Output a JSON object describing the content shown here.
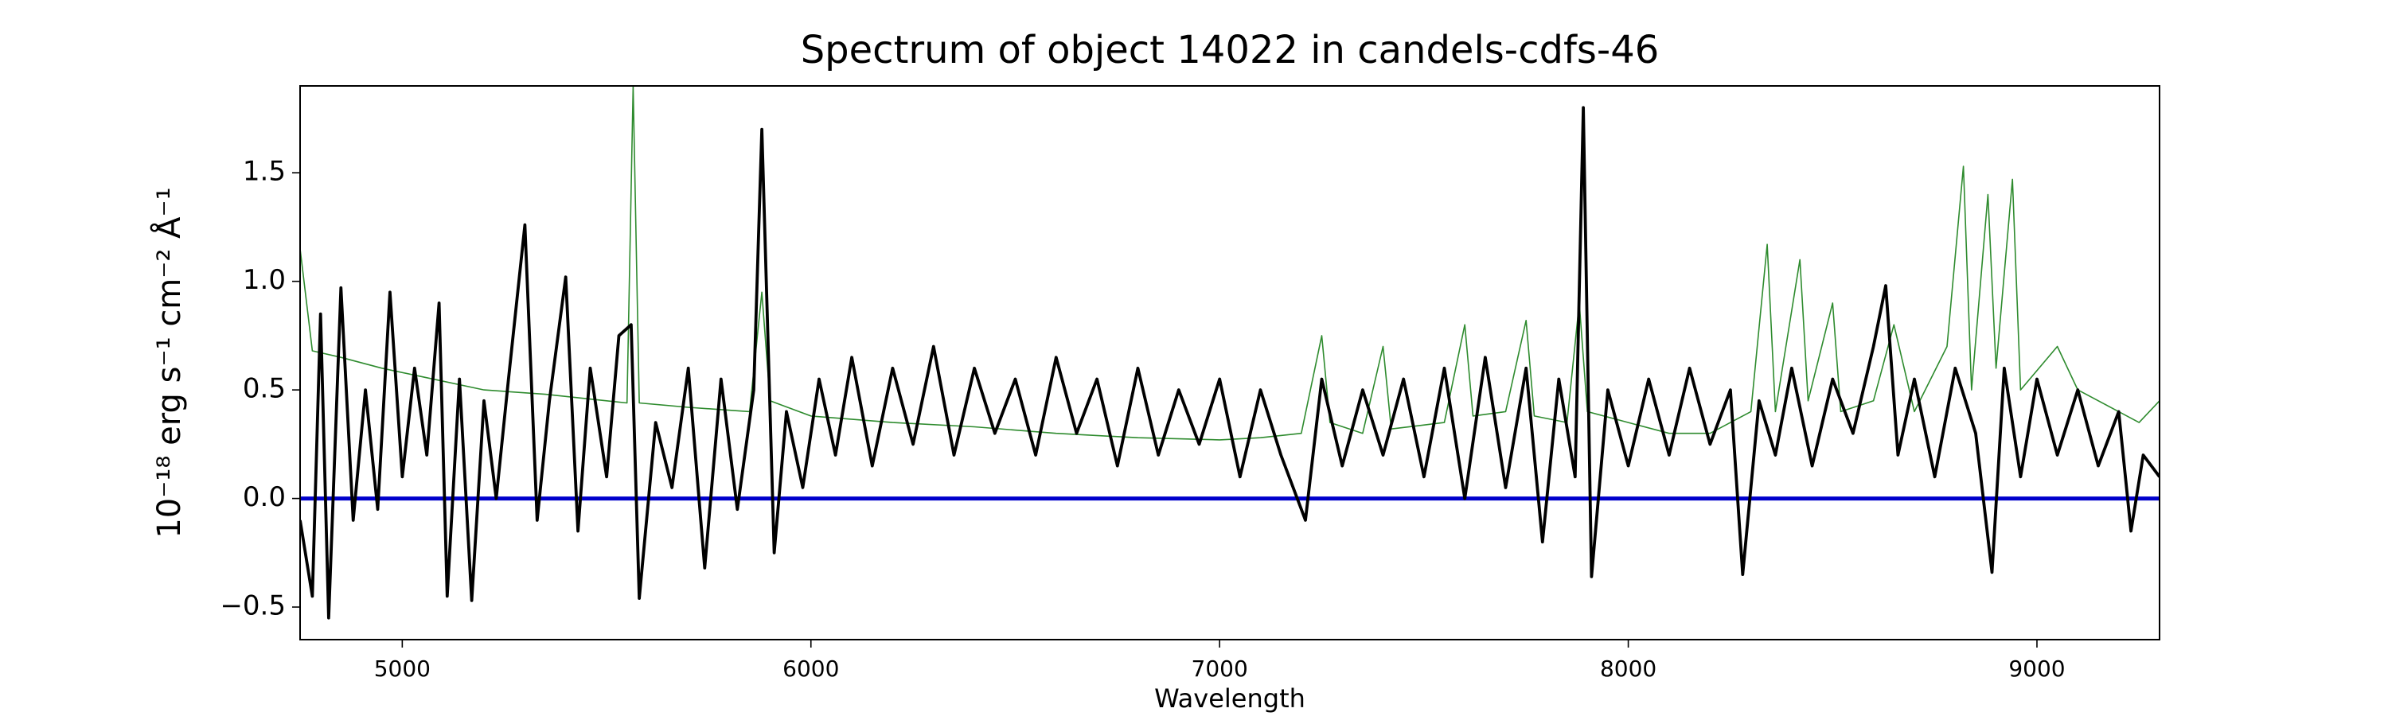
{
  "chart_data": {
    "type": "line",
    "title": "Spectrum of object 14022 in candels-cdfs-46",
    "xlabel": "Wavelength",
    "ylabel": "10⁻¹⁸ erg s⁻¹ cm⁻² Å⁻¹",
    "xlim": [
      4750,
      9300
    ],
    "ylim": [
      -0.65,
      1.9
    ],
    "xticks": [
      5000,
      6000,
      7000,
      8000,
      9000
    ],
    "yticks": [
      {
        "value": -0.5,
        "label": "−0.5"
      },
      {
        "value": 0,
        "label": "0.0"
      },
      0.5,
      {
        "value": 1,
        "label": "1.0"
      },
      1.5
    ],
    "grid": false,
    "series": [
      {
        "color": "#2e8b2e",
        "x": [
          4750,
          4780,
          4850,
          4950,
          5050,
          5200,
          5350,
          5500,
          5550,
          5565,
          5580,
          5700,
          5850,
          5880,
          5900,
          6000,
          6200,
          6400,
          6600,
          6800,
          7000,
          7100,
          7200,
          7250,
          7270,
          7350,
          7400,
          7420,
          7550,
          7600,
          7620,
          7700,
          7750,
          7770,
          7850,
          7880,
          7900,
          8000,
          8100,
          8200,
          8300,
          8340,
          8360,
          8420,
          8440,
          8500,
          8520,
          8600,
          8650,
          8700,
          8780,
          8820,
          8840,
          8880,
          8900,
          8940,
          8960,
          9050,
          9100,
          9200,
          9250,
          9300
        ],
        "values": [
          1.15,
          0.68,
          0.65,
          0.6,
          0.56,
          0.5,
          0.48,
          0.45,
          0.44,
          1.9,
          0.44,
          0.42,
          0.4,
          0.95,
          0.45,
          0.38,
          0.35,
          0.33,
          0.3,
          0.28,
          0.27,
          0.28,
          0.3,
          0.75,
          0.35,
          0.3,
          0.7,
          0.32,
          0.35,
          0.8,
          0.38,
          0.4,
          0.82,
          0.38,
          0.35,
          0.9,
          0.4,
          0.35,
          0.3,
          0.3,
          0.4,
          1.17,
          0.4,
          1.1,
          0.45,
          0.9,
          0.4,
          0.45,
          0.8,
          0.4,
          0.7,
          1.53,
          0.5,
          1.4,
          0.6,
          1.47,
          0.5,
          0.7,
          0.5,
          0.4,
          0.35,
          0.45
        ]
      },
      {
        "color": "#0000cc",
        "x": [
          4750,
          9300
        ],
        "values": [
          0,
          0
        ]
      },
      {
        "color": "#000000",
        "x": [
          4750,
          4780,
          4800,
          4820,
          4850,
          4880,
          4910,
          4940,
          4970,
          5000,
          5030,
          5060,
          5090,
          5110,
          5140,
          5170,
          5200,
          5230,
          5260,
          5300,
          5330,
          5360,
          5400,
          5430,
          5460,
          5500,
          5530,
          5560,
          5580,
          5620,
          5660,
          5700,
          5740,
          5780,
          5820,
          5860,
          5880,
          5910,
          5940,
          5980,
          6020,
          6060,
          6100,
          6150,
          6200,
          6250,
          6300,
          6350,
          6400,
          6450,
          6500,
          6550,
          6600,
          6650,
          6700,
          6750,
          6800,
          6850,
          6900,
          6950,
          7000,
          7050,
          7100,
          7150,
          7210,
          7250,
          7300,
          7350,
          7400,
          7450,
          7500,
          7550,
          7600,
          7650,
          7700,
          7750,
          7790,
          7830,
          7870,
          7890,
          7910,
          7950,
          8000,
          8050,
          8100,
          8150,
          8200,
          8250,
          8280,
          8320,
          8360,
          8400,
          8450,
          8500,
          8550,
          8600,
          8630,
          8660,
          8700,
          8750,
          8800,
          8850,
          8890,
          8920,
          8960,
          9000,
          9050,
          9100,
          9150,
          9200,
          9230,
          9260,
          9300
        ],
        "values": [
          -0.1,
          -0.45,
          0.85,
          -0.55,
          0.97,
          -0.1,
          0.5,
          -0.05,
          0.95,
          0.1,
          0.6,
          0.2,
          0.9,
          -0.45,
          0.55,
          -0.47,
          0.45,
          0.0,
          0.55,
          1.26,
          -0.1,
          0.45,
          1.02,
          -0.15,
          0.6,
          0.1,
          0.75,
          0.8,
          -0.46,
          0.35,
          0.05,
          0.6,
          -0.32,
          0.55,
          -0.05,
          0.5,
          1.7,
          -0.25,
          0.4,
          0.05,
          0.55,
          0.2,
          0.65,
          0.15,
          0.6,
          0.25,
          0.7,
          0.2,
          0.6,
          0.3,
          0.55,
          0.2,
          0.65,
          0.3,
          0.55,
          0.15,
          0.6,
          0.2,
          0.5,
          0.25,
          0.55,
          0.1,
          0.5,
          0.2,
          -0.1,
          0.55,
          0.15,
          0.5,
          0.2,
          0.55,
          0.1,
          0.6,
          0.0,
          0.65,
          0.05,
          0.6,
          -0.2,
          0.55,
          0.1,
          1.8,
          -0.36,
          0.5,
          0.15,
          0.55,
          0.2,
          0.6,
          0.25,
          0.5,
          -0.35,
          0.45,
          0.2,
          0.6,
          0.15,
          0.55,
          0.3,
          0.7,
          0.98,
          0.2,
          0.55,
          0.1,
          0.6,
          0.3,
          -0.34,
          0.6,
          0.1,
          0.55,
          0.2,
          0.5,
          0.15,
          0.4,
          -0.15,
          0.2,
          0.1
        ]
      }
    ]
  }
}
